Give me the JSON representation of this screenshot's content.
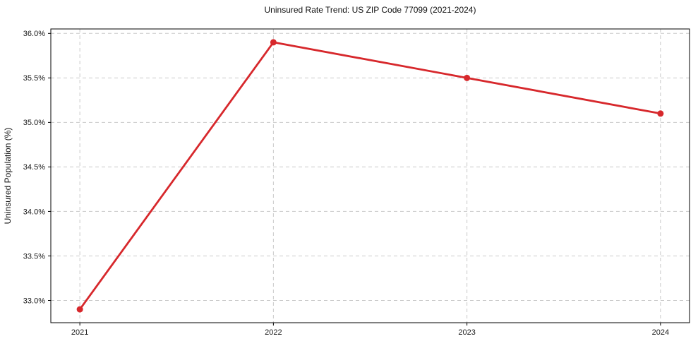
{
  "chart_data": {
    "type": "line",
    "title": "Uninsured Rate Trend: US ZIP Code 77099 (2021-2024)",
    "xlabel": "",
    "ylabel": "Uninsured Population (%)",
    "x": [
      2021,
      2022,
      2023,
      2024
    ],
    "x_tick_labels": [
      "2021",
      "2022",
      "2023",
      "2024"
    ],
    "series": [
      {
        "name": "Uninsured Population (%)",
        "values": [
          32.9,
          35.9,
          35.5,
          35.1
        ]
      }
    ],
    "y_ticks": [
      33.0,
      33.5,
      34.0,
      34.5,
      35.0,
      35.5,
      36.0
    ],
    "y_tick_labels": [
      "33.0%",
      "33.5%",
      "34.0%",
      "34.5%",
      "35.0%",
      "35.5%",
      "36.0%"
    ],
    "xlim": [
      2020.85,
      2024.15
    ],
    "ylim": [
      32.75,
      36.05
    ],
    "grid": true,
    "grid_style": "dashed",
    "legend": "none",
    "colors": {
      "line": "#d7282c",
      "marker": "#d7282c",
      "grid": "#c9c9c9",
      "spine": "#000000",
      "background": "#ffffff"
    },
    "marker": "circle"
  }
}
